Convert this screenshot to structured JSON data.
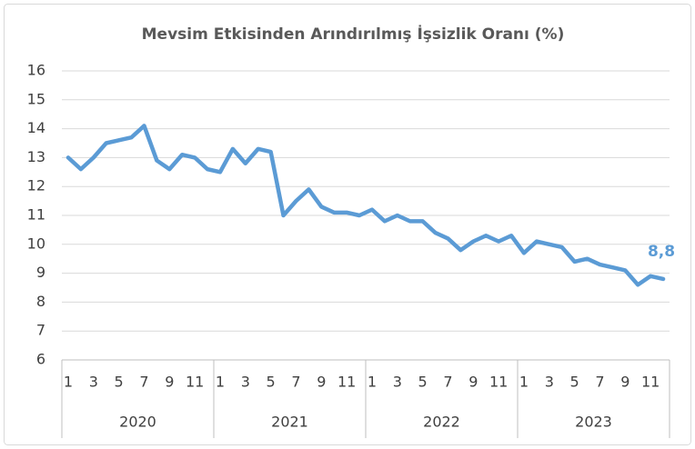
{
  "chart_data": {
    "type": "line",
    "title": "Mevsim Etkisinden Arındırılmış İşsizlik Oranı (%)",
    "categories": [
      "1",
      null,
      "3",
      null,
      "5",
      null,
      "7",
      null,
      "9",
      null,
      "11",
      null,
      "1",
      null,
      "3",
      null,
      "5",
      null,
      "7",
      null,
      "9",
      null,
      "11",
      null,
      "1",
      null,
      "3",
      null,
      "5",
      null,
      "7",
      null,
      "9",
      null,
      "11",
      null,
      "1",
      null,
      "3",
      null,
      "5",
      null,
      "7",
      null,
      "9",
      null,
      "11",
      null
    ],
    "category_groups": [
      "2020",
      "2021",
      "2022",
      "2023"
    ],
    "values": [
      13.0,
      12.6,
      13.0,
      13.5,
      13.6,
      13.7,
      14.1,
      12.9,
      12.6,
      13.1,
      13.0,
      12.6,
      12.5,
      13.3,
      12.8,
      13.3,
      13.2,
      11.0,
      11.5,
      11.9,
      11.3,
      11.1,
      11.1,
      11.0,
      11.2,
      10.8,
      11.0,
      10.8,
      10.8,
      10.4,
      10.2,
      9.8,
      10.1,
      10.3,
      10.1,
      10.3,
      9.7,
      10.1,
      10.0,
      9.9,
      9.4,
      9.5,
      9.3,
      9.2,
      9.1,
      8.6,
      8.9,
      8.8
    ],
    "value_labels": [
      null,
      null,
      null,
      null,
      null,
      null,
      null,
      null,
      null,
      null,
      null,
      null,
      null,
      null,
      null,
      null,
      null,
      null,
      null,
      null,
      null,
      null,
      null,
      null,
      null,
      null,
      null,
      null,
      null,
      null,
      null,
      null,
      null,
      null,
      null,
      null,
      null,
      null,
      null,
      null,
      null,
      null,
      null,
      null,
      null,
      null,
      null,
      "8,8"
    ],
    "color": "#5b9bd5",
    "ylim": [
      6,
      16
    ],
    "yticks": [
      6,
      7,
      8,
      9,
      10,
      11,
      12,
      13,
      14,
      15,
      16
    ],
    "grid": true
  }
}
